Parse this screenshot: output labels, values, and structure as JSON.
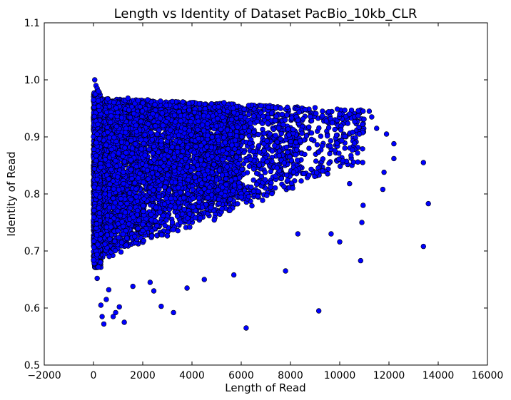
{
  "chart_data": {
    "type": "scatter",
    "title": "Length vs Identity of Dataset PacBio_10kb_CLR",
    "xlabel": "Length of Read",
    "ylabel": "Identity of Read",
    "xlim": [
      -2000,
      16000
    ],
    "ylim": [
      0.5,
      1.1
    ],
    "xticks": [
      -2000,
      0,
      2000,
      4000,
      6000,
      8000,
      10000,
      12000,
      14000,
      16000
    ],
    "yticks": [
      0.5,
      0.6,
      0.7,
      0.8,
      0.9,
      1.0,
      1.1
    ],
    "xtick_labels": [
      "−2000",
      "0",
      "2000",
      "4000",
      "6000",
      "8000",
      "10000",
      "12000",
      "14000",
      "16000"
    ],
    "ytick_labels": [
      "0.5",
      "0.6",
      "0.7",
      "0.8",
      "0.9",
      "1.0",
      "1.1"
    ],
    "grid": false,
    "marker_color": "#0000ff",
    "marker_edge_color": "#000000",
    "series": [
      {
        "points": [
          [
            50,
            1.0
          ],
          [
            100,
            0.99
          ],
          [
            150,
            0.985
          ],
          [
            80,
            0.975
          ],
          [
            200,
            0.98
          ],
          [
            150,
            0.652
          ],
          [
            300,
            0.605
          ],
          [
            350,
            0.585
          ],
          [
            420,
            0.572
          ],
          [
            520,
            0.615
          ],
          [
            620,
            0.632
          ],
          [
            800,
            0.585
          ],
          [
            900,
            0.592
          ],
          [
            1050,
            0.602
          ],
          [
            1250,
            0.575
          ],
          [
            1600,
            0.638
          ],
          [
            2300,
            0.645
          ],
          [
            2450,
            0.63
          ],
          [
            2750,
            0.603
          ],
          [
            3250,
            0.592
          ],
          [
            3800,
            0.635
          ],
          [
            4500,
            0.65
          ],
          [
            5700,
            0.658
          ],
          [
            6200,
            0.565
          ],
          [
            7800,
            0.665
          ],
          [
            8300,
            0.73
          ],
          [
            9150,
            0.595
          ],
          [
            9650,
            0.73
          ],
          [
            10000,
            0.716
          ],
          [
            10400,
            0.818
          ],
          [
            10850,
            0.683
          ],
          [
            10900,
            0.75
          ],
          [
            10950,
            0.78
          ],
          [
            11750,
            0.808
          ],
          [
            12200,
            0.862
          ],
          [
            11800,
            0.838
          ],
          [
            13400,
            0.855
          ],
          [
            13600,
            0.783
          ],
          [
            13400,
            0.708
          ],
          [
            11300,
            0.935
          ],
          [
            11500,
            0.915
          ],
          [
            12200,
            0.888
          ],
          [
            11900,
            0.905
          ],
          [
            11200,
            0.945
          ],
          [
            10950,
            0.945
          ],
          [
            10800,
            0.905
          ],
          [
            10400,
            0.94
          ],
          [
            10000,
            0.94
          ],
          [
            9700,
            0.925
          ],
          [
            9300,
            0.945
          ],
          [
            6300,
            0.955
          ],
          [
            1400,
            0.968
          ],
          [
            2200,
            0.965
          ],
          [
            3200,
            0.962
          ],
          [
            4300,
            0.958
          ],
          [
            5300,
            0.96
          ],
          [
            7600,
            0.95
          ],
          [
            8600,
            0.948
          ],
          [
            7100,
            0.952
          ]
        ]
      }
    ]
  }
}
